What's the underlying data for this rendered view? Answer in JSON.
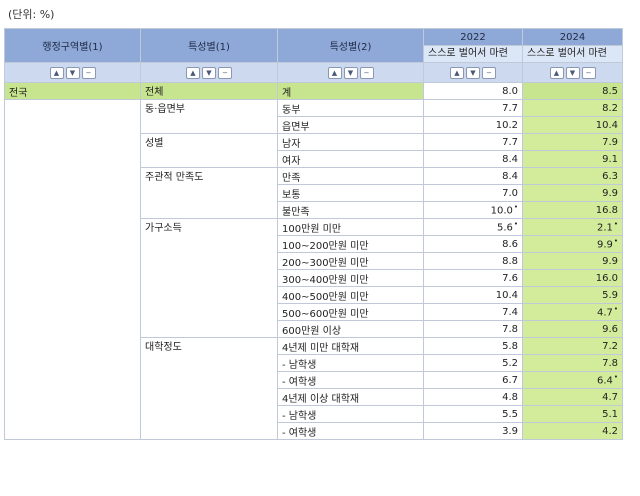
{
  "unit_label": "(단위: %)",
  "header": {
    "col1": "행정구역별(1)",
    "col2": "특성별(1)",
    "col3": "특성별(2)",
    "year1": "2022",
    "year2": "2024",
    "item1": "스스로 벌어서 마련",
    "item2": "스스로 벌어서 마련"
  },
  "sort_icons": [
    "chevron-up-icon",
    "chevron-down-icon",
    "minus-icon"
  ],
  "colors": {
    "header": "#8ea8d8",
    "highlight": "#d3ec9b",
    "total": "#c7e48f"
  },
  "rows": [
    {
      "c1": "전국",
      "c2": "전체",
      "c3": "계",
      "v2022": "8.0",
      "v2024": "8.5"
    },
    {
      "c1": "",
      "c2": "동·읍면부",
      "c3": "동부",
      "v2022": "7.7",
      "v2024": "8.2"
    },
    {
      "c1": "",
      "c2": "",
      "c3": "읍면부",
      "v2022": "10.2",
      "v2024": "10.4"
    },
    {
      "c1": "",
      "c2": "성별",
      "c3": "남자",
      "v2022": "7.7",
      "v2024": "7.9"
    },
    {
      "c1": "",
      "c2": "",
      "c3": "여자",
      "v2022": "8.4",
      "v2024": "9.1"
    },
    {
      "c1": "",
      "c2": "주관적 만족도",
      "c3": "만족",
      "v2022": "8.4",
      "v2024": "6.3"
    },
    {
      "c1": "",
      "c2": "",
      "c3": "보통",
      "v2022": "7.0",
      "v2024": "9.9"
    },
    {
      "c1": "",
      "c2": "",
      "c3": "불만족",
      "v2022": "10.0",
      "v2024": "16.8",
      "n2022": "•"
    },
    {
      "c1": "",
      "c2": "가구소득",
      "c3": "100만원 미만",
      "v2022": "5.6",
      "v2024": "2.1",
      "n2022": "•",
      "n2024": "•"
    },
    {
      "c1": "",
      "c2": "",
      "c3": "100~200만원 미만",
      "v2022": "8.6",
      "v2024": "9.9",
      "n2024": "•"
    },
    {
      "c1": "",
      "c2": "",
      "c3": "200~300만원 미만",
      "v2022": "8.8",
      "v2024": "9.9"
    },
    {
      "c1": "",
      "c2": "",
      "c3": "300~400만원 미만",
      "v2022": "7.6",
      "v2024": "16.0"
    },
    {
      "c1": "",
      "c2": "",
      "c3": "400~500만원 미만",
      "v2022": "10.4",
      "v2024": "5.9"
    },
    {
      "c1": "",
      "c2": "",
      "c3": "500~600만원 미만",
      "v2022": "7.4",
      "v2024": "4.7",
      "n2024": "•"
    },
    {
      "c1": "",
      "c2": "",
      "c3": "600만원 이상",
      "v2022": "7.8",
      "v2024": "9.6"
    },
    {
      "c1": "",
      "c2": "대학정도",
      "c3": "4년제 미만 대학재",
      "v2022": "5.8",
      "v2024": "7.2"
    },
    {
      "c1": "",
      "c2": "",
      "c3": "- 남학생",
      "v2022": "5.2",
      "v2024": "7.8"
    },
    {
      "c1": "",
      "c2": "",
      "c3": "- 여학생",
      "v2022": "6.7",
      "v2024": "6.4",
      "n2024": "•"
    },
    {
      "c1": "",
      "c2": "",
      "c3": "4년제 이상 대학재",
      "v2022": "4.8",
      "v2024": "4.7"
    },
    {
      "c1": "",
      "c2": "",
      "c3": "- 남학생",
      "v2022": "5.5",
      "v2024": "5.1"
    },
    {
      "c1": "",
      "c2": "",
      "c3": "- 여학생",
      "v2022": "3.9",
      "v2024": "4.2"
    }
  ]
}
